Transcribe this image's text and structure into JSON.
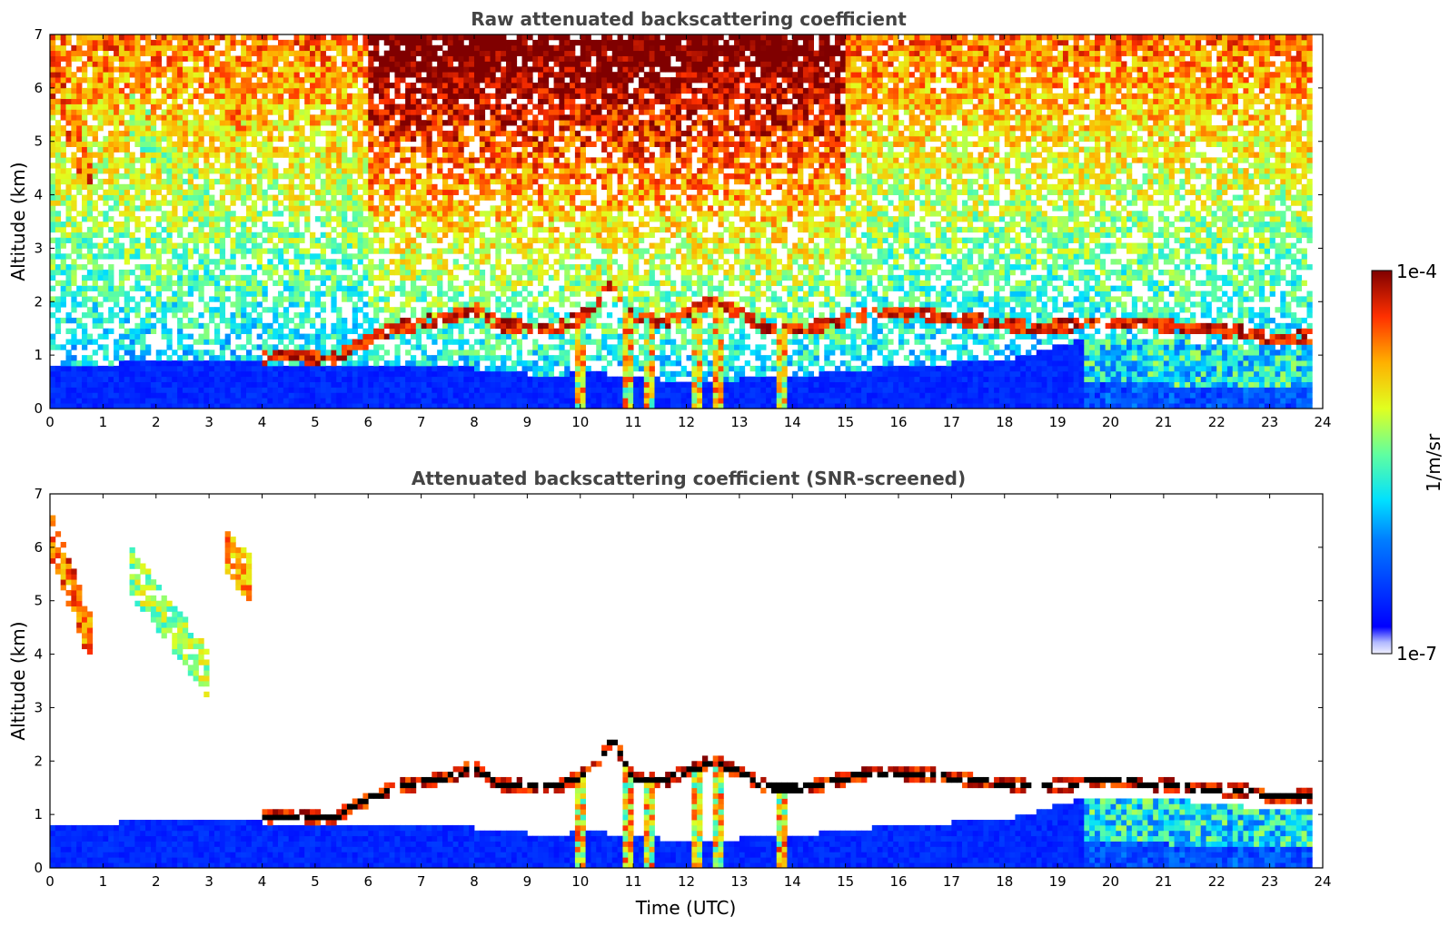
{
  "chart_data": [
    {
      "type": "heatmap",
      "title": "Raw attenuated backscattering coefficient",
      "xlabel": "",
      "ylabel": "Altitude (km)",
      "xlim": [
        0,
        24
      ],
      "ylim": [
        0,
        7
      ],
      "xticks": [
        "0",
        "1",
        "2",
        "3",
        "4",
        "5",
        "6",
        "7",
        "8",
        "9",
        "10",
        "11",
        "12",
        "13",
        "14",
        "15",
        "16",
        "17",
        "18",
        "19",
        "20",
        "21",
        "22",
        "23",
        "24"
      ],
      "yticks": [
        "0",
        "1",
        "2",
        "3",
        "4",
        "5",
        "6",
        "7"
      ],
      "screened": false,
      "features": [
        {
          "name": "aerosol boundary layer",
          "kind": "pbl",
          "profile_time": [
            0,
            2,
            4,
            6,
            8,
            9.5,
            10,
            12,
            14,
            16,
            18,
            19.5,
            20,
            21,
            22,
            23,
            23.75
          ],
          "profile_top_km": [
            0.75,
            0.9,
            0.85,
            0.8,
            0.75,
            0.6,
            0.7,
            0.5,
            0.6,
            0.8,
            0.9,
            1.3,
            1.3,
            1.3,
            1.2,
            1.1,
            1.1
          ]
        },
        {
          "name": "boundary layer cloud top",
          "kind": "cloud",
          "time": [
            4,
            4.6,
            5.3,
            5.8,
            6.5,
            7,
            7.5,
            8,
            8.5,
            9.5,
            10.2,
            10.6,
            11,
            11.5,
            12.5,
            13,
            13.5,
            14.3,
            15.5,
            16.5,
            18.7,
            19.5,
            20.5,
            21.5,
            22.5,
            23,
            23.75
          ],
          "alt_km": [
            0.95,
            1.0,
            0.9,
            1.2,
            1.5,
            1.6,
            1.7,
            1.9,
            1.55,
            1.5,
            1.8,
            2.4,
            1.7,
            1.6,
            2.0,
            1.8,
            1.5,
            1.5,
            1.8,
            1.75,
            1.5,
            1.6,
            1.6,
            1.5,
            1.45,
            1.3,
            1.35
          ],
          "intensity": 0.97
        },
        {
          "name": "high clouds 0-1 UTC",
          "kind": "cirrus",
          "x": [
            0,
            0.8
          ],
          "y": [
            4.2,
            6.3
          ],
          "intensity": 0.85
        },
        {
          "name": "mid cloud 1.5-3 UTC",
          "kind": "cirrus",
          "x": [
            1.5,
            3.0
          ],
          "y": [
            3.6,
            5.6
          ],
          "intensity": 0.6
        },
        {
          "name": "cloud 3.3-3.8 UTC",
          "kind": "cirrus",
          "x": [
            3.3,
            3.8
          ],
          "y": [
            5.4,
            5.9
          ],
          "intensity": 0.8
        },
        {
          "name": "precip shafts",
          "kind": "virga",
          "times": [
            10.0,
            10.9,
            11.3,
            12.2,
            12.6,
            13.8
          ],
          "intensity": 0.8
        }
      ]
    },
    {
      "type": "heatmap",
      "title": "Attenuated backscattering coefficient (SNR-screened)",
      "xlabel": "Time (UTC)",
      "ylabel": "Altitude (km)",
      "xlim": [
        0,
        24
      ],
      "ylim": [
        0,
        7
      ],
      "xticks": [
        "0",
        "1",
        "2",
        "3",
        "4",
        "5",
        "6",
        "7",
        "8",
        "9",
        "10",
        "11",
        "12",
        "13",
        "14",
        "15",
        "16",
        "17",
        "18",
        "19",
        "20",
        "21",
        "22",
        "23",
        "24"
      ],
      "yticks": [
        "0",
        "1",
        "2",
        "3",
        "4",
        "5",
        "6",
        "7"
      ],
      "screened": true
    }
  ],
  "colorbar": {
    "label": "1/m/sr",
    "max_label": "1e-4",
    "min_label": "1e-7",
    "colormap": "jet"
  },
  "colors": {
    "frame": "#000000",
    "title": "#444444",
    "saturated": "#000000"
  }
}
